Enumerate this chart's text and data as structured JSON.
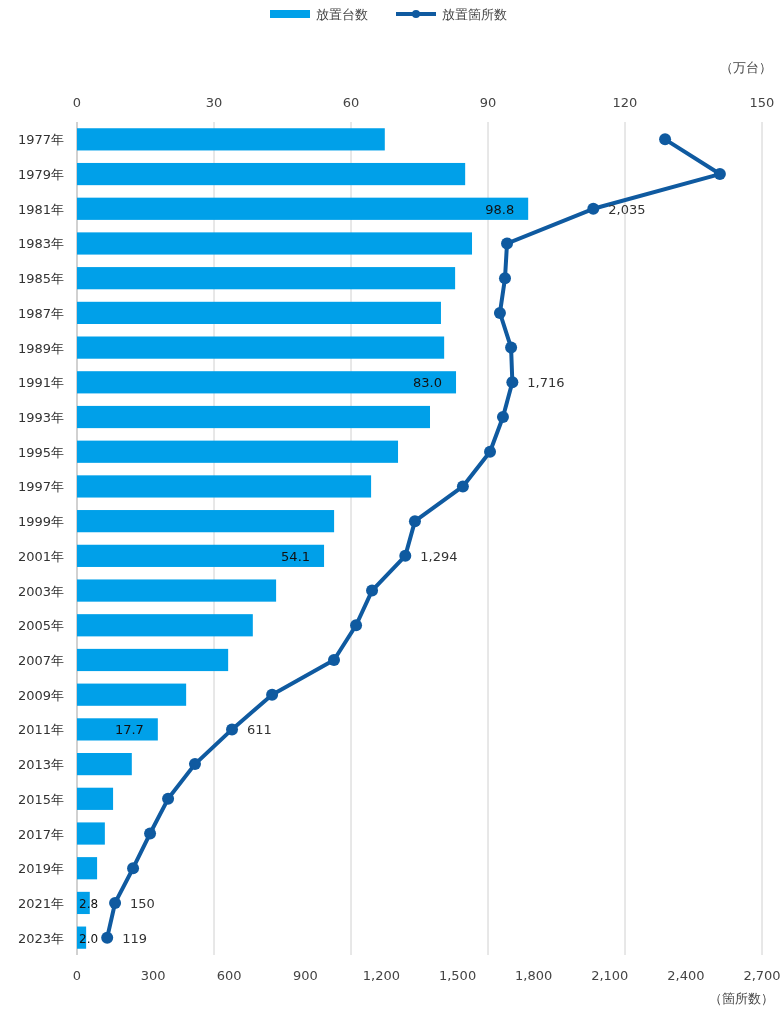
{
  "chart_data": {
    "type": "bar",
    "orientation": "horizontal",
    "categories": [
      "1977年",
      "1979年",
      "1981年",
      "1983年",
      "1985年",
      "1987年",
      "1989年",
      "1991年",
      "1993年",
      "1995年",
      "1997年",
      "1999年",
      "2001年",
      "2003年",
      "2005年",
      "2007年",
      "2009年",
      "2011年",
      "2013年",
      "2015年",
      "2017年",
      "2019年",
      "2021年",
      "2023年"
    ],
    "series": [
      {
        "name": "放置台数",
        "axis": "x2",
        "color": "#00a0e9",
        "values": [
          67.4,
          85.0,
          98.8,
          86.5,
          82.8,
          79.7,
          80.4,
          83.0,
          77.3,
          70.3,
          64.4,
          56.3,
          54.1,
          43.6,
          38.5,
          33.1,
          23.9,
          17.7,
          12.0,
          7.9,
          6.1,
          4.4,
          2.8,
          2.0
        ],
        "value_labels": [
          null,
          null,
          "98.8",
          null,
          null,
          null,
          null,
          "83.0",
          null,
          null,
          null,
          null,
          "54.1",
          null,
          null,
          null,
          null,
          "17.7",
          null,
          null,
          null,
          null,
          "2.8",
          "2.0"
        ]
      },
      {
        "name": "放置箇所数",
        "type": "line",
        "color": "#0f5aa0",
        "values": [
          2318,
          2534,
          2035,
          1695,
          1687,
          1667,
          1711,
          1716,
          1679,
          1628,
          1521,
          1332,
          1294,
          1163,
          1100,
          1013,
          769,
          611,
          465,
          359,
          288,
          221,
          150,
          119
        ],
        "value_labels": [
          null,
          null,
          "2,035",
          null,
          null,
          null,
          null,
          "1,716",
          null,
          null,
          null,
          null,
          "1,294",
          null,
          null,
          null,
          null,
          "611",
          null,
          null,
          null,
          null,
          "150",
          "119"
        ]
      }
    ],
    "xlim": [
      0,
      2700
    ],
    "xticks": [
      0,
      300,
      600,
      900,
      {
        "value": 1200,
        "label": "1,200"
      },
      {
        "value": 1500,
        "label": "1,500"
      },
      {
        "value": 1800,
        "label": "1,800"
      },
      {
        "value": 2100,
        "label": "2,100"
      },
      {
        "value": 2400,
        "label": "2,400"
      },
      {
        "value": 2700,
        "label": "2,700"
      }
    ],
    "xlabel": "（箇所数）",
    "x2lim": [
      0,
      150
    ],
    "x2ticks": [
      0,
      30,
      60,
      90,
      120,
      150
    ],
    "x2label": "（万台）",
    "grid": "x",
    "legend": "top",
    "marker": "circle",
    "line_style": "solid"
  }
}
